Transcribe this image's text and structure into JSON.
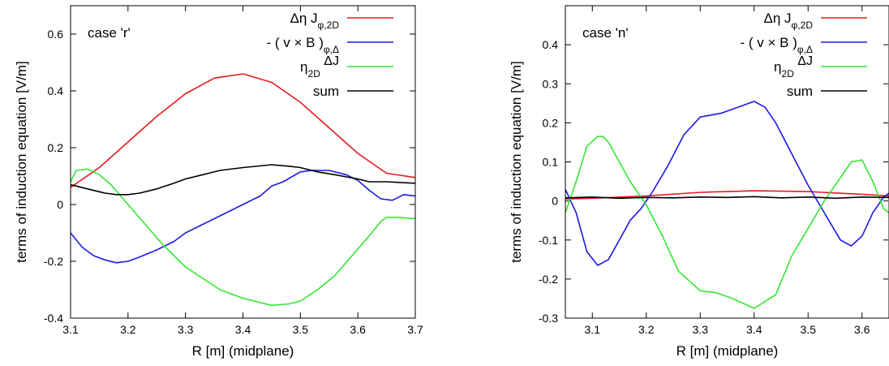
{
  "chart_data": [
    {
      "type": "line",
      "annotation": "case 'r'",
      "xlabel": "R [m] (midplane)",
      "ylabel": "terms of induction equation [V/m]",
      "xlim": [
        3.1,
        3.7
      ],
      "ylim": [
        -0.4,
        0.7
      ],
      "xticks": [
        "3.1",
        "3.2",
        "3.3",
        "3.4",
        "3.5",
        "3.6",
        "3.7"
      ],
      "yticks": [
        "-0.4",
        "-0.2",
        "0",
        "0.2",
        "0.4",
        "0.6"
      ],
      "legend_position": "top-right",
      "series": [
        {
          "name": "Δη J_φ,2D",
          "color": "#e41a1c",
          "x": [
            3.1,
            3.15,
            3.2,
            3.25,
            3.3,
            3.35,
            3.4,
            3.45,
            3.5,
            3.55,
            3.6,
            3.65,
            3.7
          ],
          "y": [
            0.06,
            0.13,
            0.22,
            0.31,
            0.39,
            0.445,
            0.46,
            0.43,
            0.36,
            0.27,
            0.18,
            0.11,
            0.095
          ]
        },
        {
          "name": "- ( v × B )_φ,Δ",
          "color": "#1a1ae6",
          "x": [
            3.1,
            3.12,
            3.14,
            3.16,
            3.18,
            3.2,
            3.22,
            3.25,
            3.28,
            3.3,
            3.33,
            3.36,
            3.4,
            3.43,
            3.45,
            3.47,
            3.5,
            3.52,
            3.55,
            3.58,
            3.6,
            3.62,
            3.64,
            3.66,
            3.68,
            3.7
          ],
          "y": [
            -0.1,
            -0.15,
            -0.18,
            -0.195,
            -0.205,
            -0.2,
            -0.185,
            -0.16,
            -0.13,
            -0.1,
            -0.07,
            -0.04,
            0.0,
            0.03,
            0.065,
            0.08,
            0.115,
            0.12,
            0.12,
            0.105,
            0.085,
            0.05,
            0.02,
            0.015,
            0.035,
            0.03
          ]
        },
        {
          "name": "η_2D ΔJ_φ",
          "color": "#33e633",
          "x": [
            3.1,
            3.11,
            3.13,
            3.15,
            3.17,
            3.2,
            3.23,
            3.26,
            3.3,
            3.33,
            3.36,
            3.4,
            3.43,
            3.45,
            3.48,
            3.5,
            3.53,
            3.56,
            3.59,
            3.62,
            3.64,
            3.65,
            3.67,
            3.7
          ],
          "y": [
            0.08,
            0.12,
            0.125,
            0.105,
            0.07,
            0.0,
            -0.07,
            -0.14,
            -0.22,
            -0.26,
            -0.3,
            -0.33,
            -0.345,
            -0.355,
            -0.35,
            -0.34,
            -0.3,
            -0.25,
            -0.18,
            -0.11,
            -0.06,
            -0.045,
            -0.045,
            -0.05
          ]
        },
        {
          "name": "sum",
          "color": "#000000",
          "x": [
            3.1,
            3.13,
            3.16,
            3.18,
            3.2,
            3.22,
            3.25,
            3.28,
            3.3,
            3.33,
            3.36,
            3.4,
            3.45,
            3.48,
            3.5,
            3.53,
            3.56,
            3.6,
            3.62,
            3.65,
            3.7
          ],
          "y": [
            0.07,
            0.055,
            0.04,
            0.035,
            0.035,
            0.04,
            0.055,
            0.075,
            0.09,
            0.105,
            0.12,
            0.13,
            0.14,
            0.135,
            0.13,
            0.115,
            0.105,
            0.09,
            0.08,
            0.08,
            0.075
          ]
        }
      ]
    },
    {
      "type": "line",
      "annotation": "case 'n'",
      "xlabel": "R [m] (midplane)",
      "ylabel": "terms of induction equation [V/m]",
      "xlim": [
        3.05,
        3.65
      ],
      "ylim": [
        -0.3,
        0.5
      ],
      "xticks": [
        "3.1",
        "3.2",
        "3.3",
        "3.4",
        "3.5",
        "3.6"
      ],
      "yticks": [
        "-0.3",
        "-0.2",
        "-0.1",
        "0",
        "0.1",
        "0.2",
        "0.3",
        "0.4"
      ],
      "legend_position": "top-right",
      "series": [
        {
          "name": "Δη J_φ,2D",
          "color": "#e41a1c",
          "x": [
            3.05,
            3.1,
            3.2,
            3.3,
            3.4,
            3.5,
            3.6,
            3.65
          ],
          "y": [
            0.005,
            0.007,
            0.013,
            0.022,
            0.026,
            0.024,
            0.017,
            0.013
          ]
        },
        {
          "name": "- ( v × B )_φ,Δ",
          "color": "#1a1ae6",
          "x": [
            3.05,
            3.07,
            3.09,
            3.11,
            3.13,
            3.15,
            3.17,
            3.19,
            3.21,
            3.24,
            3.27,
            3.3,
            3.32,
            3.34,
            3.37,
            3.4,
            3.42,
            3.44,
            3.47,
            3.5,
            3.53,
            3.56,
            3.58,
            3.6,
            3.62,
            3.64,
            3.65
          ],
          "y": [
            0.03,
            -0.03,
            -0.13,
            -0.165,
            -0.15,
            -0.1,
            -0.05,
            -0.02,
            0.02,
            0.09,
            0.17,
            0.215,
            0.22,
            0.225,
            0.24,
            0.255,
            0.24,
            0.2,
            0.12,
            0.04,
            -0.03,
            -0.1,
            -0.115,
            -0.09,
            -0.03,
            0.01,
            0.02
          ]
        },
        {
          "name": "η_2D ΔJ_φ",
          "color": "#33e633",
          "x": [
            3.05,
            3.07,
            3.09,
            3.11,
            3.12,
            3.13,
            3.15,
            3.17,
            3.2,
            3.23,
            3.26,
            3.3,
            3.33,
            3.36,
            3.4,
            3.44,
            3.47,
            3.5,
            3.53,
            3.56,
            3.58,
            3.6,
            3.62,
            3.64,
            3.65
          ],
          "y": [
            -0.03,
            0.05,
            0.14,
            0.165,
            0.165,
            0.15,
            0.1,
            0.05,
            -0.01,
            -0.09,
            -0.18,
            -0.23,
            -0.235,
            -0.25,
            -0.275,
            -0.24,
            -0.14,
            -0.07,
            0.0,
            0.06,
            0.1,
            0.105,
            0.05,
            -0.02,
            -0.03
          ]
        },
        {
          "name": "sum",
          "color": "#000000",
          "x": [
            3.05,
            3.1,
            3.15,
            3.2,
            3.25,
            3.3,
            3.35,
            3.4,
            3.45,
            3.5,
            3.55,
            3.6,
            3.65
          ],
          "y": [
            0.008,
            0.01,
            0.007,
            0.009,
            0.008,
            0.01,
            0.009,
            0.011,
            0.008,
            0.01,
            0.007,
            0.01,
            0.009
          ]
        }
      ]
    }
  ]
}
